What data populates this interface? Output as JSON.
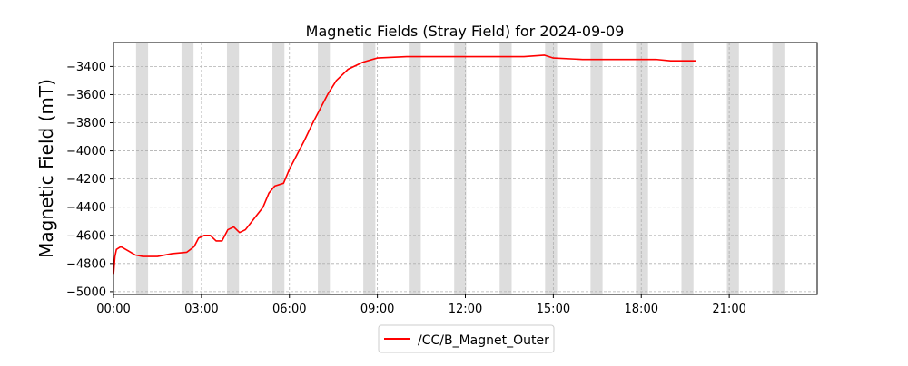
{
  "chart_data": {
    "type": "line",
    "title": "Magnetic Fields (Stray Field) for 2024-09-09",
    "xlabel": "",
    "ylabel": "Magnetic Field (mT)",
    "xlim_hours": [
      0,
      24
    ],
    "ylim": [
      -5020,
      -3230
    ],
    "x_ticks": [
      {
        "value": 0,
        "label": "00:00"
      },
      {
        "value": 3,
        "label": "03:00"
      },
      {
        "value": 6,
        "label": "06:00"
      },
      {
        "value": 9,
        "label": "09:00"
      },
      {
        "value": 12,
        "label": "12:00"
      },
      {
        "value": 15,
        "label": "15:00"
      },
      {
        "value": 18,
        "label": "18:00"
      },
      {
        "value": 21,
        "label": "21:00"
      }
    ],
    "y_ticks": [
      {
        "value": -3400,
        "label": "−3400"
      },
      {
        "value": -3600,
        "label": "−3600"
      },
      {
        "value": -3800,
        "label": "−3800"
      },
      {
        "value": -4000,
        "label": "−4000"
      },
      {
        "value": -4200,
        "label": "−4200"
      },
      {
        "value": -4400,
        "label": "−4400"
      },
      {
        "value": -4600,
        "label": "−4600"
      },
      {
        "value": -4800,
        "label": "−4800"
      },
      {
        "value": -5000,
        "label": "−5000"
      }
    ],
    "grid": true,
    "legend_position": "bottom-center",
    "shaded_bands_hours": [
      [
        0.77,
        1.18
      ],
      [
        2.32,
        2.73
      ],
      [
        3.87,
        4.28
      ],
      [
        5.42,
        5.83
      ],
      [
        6.97,
        7.38
      ],
      [
        8.52,
        8.93
      ],
      [
        10.07,
        10.48
      ],
      [
        11.62,
        12.03
      ],
      [
        13.17,
        13.58
      ],
      [
        14.72,
        15.13
      ],
      [
        16.27,
        16.68
      ],
      [
        17.82,
        18.23
      ],
      [
        19.37,
        19.78
      ],
      [
        20.92,
        21.33
      ],
      [
        22.47,
        22.88
      ]
    ],
    "band_color": "#dddddd",
    "series": [
      {
        "name": "/CC/B_Magnet_Outer",
        "color": "#ff0000",
        "points": [
          [
            0.0,
            -4880
          ],
          [
            0.05,
            -4750
          ],
          [
            0.1,
            -4700
          ],
          [
            0.25,
            -4680
          ],
          [
            0.5,
            -4710
          ],
          [
            0.75,
            -4740
          ],
          [
            1.0,
            -4750
          ],
          [
            1.5,
            -4750
          ],
          [
            2.0,
            -4730
          ],
          [
            2.5,
            -4720
          ],
          [
            2.75,
            -4680
          ],
          [
            2.9,
            -4620
          ],
          [
            3.1,
            -4600
          ],
          [
            3.3,
            -4600
          ],
          [
            3.5,
            -4640
          ],
          [
            3.7,
            -4640
          ],
          [
            3.9,
            -4560
          ],
          [
            4.1,
            -4540
          ],
          [
            4.3,
            -4580
          ],
          [
            4.5,
            -4560
          ],
          [
            4.8,
            -4480
          ],
          [
            5.1,
            -4400
          ],
          [
            5.3,
            -4300
          ],
          [
            5.5,
            -4250
          ],
          [
            5.8,
            -4230
          ],
          [
            6.0,
            -4130
          ],
          [
            6.2,
            -4050
          ],
          [
            6.5,
            -3930
          ],
          [
            6.8,
            -3800
          ],
          [
            7.0,
            -3720
          ],
          [
            7.3,
            -3600
          ],
          [
            7.6,
            -3500
          ],
          [
            8.0,
            -3420
          ],
          [
            8.5,
            -3370
          ],
          [
            9.0,
            -3340
          ],
          [
            10.0,
            -3330
          ],
          [
            11.0,
            -3330
          ],
          [
            12.0,
            -3330
          ],
          [
            13.0,
            -3330
          ],
          [
            14.0,
            -3330
          ],
          [
            14.7,
            -3320
          ],
          [
            15.0,
            -3340
          ],
          [
            16.0,
            -3350
          ],
          [
            17.0,
            -3350
          ],
          [
            18.0,
            -3350
          ],
          [
            18.5,
            -3350
          ],
          [
            19.0,
            -3360
          ],
          [
            19.5,
            -3360
          ],
          [
            19.85,
            -3360
          ]
        ]
      }
    ]
  }
}
